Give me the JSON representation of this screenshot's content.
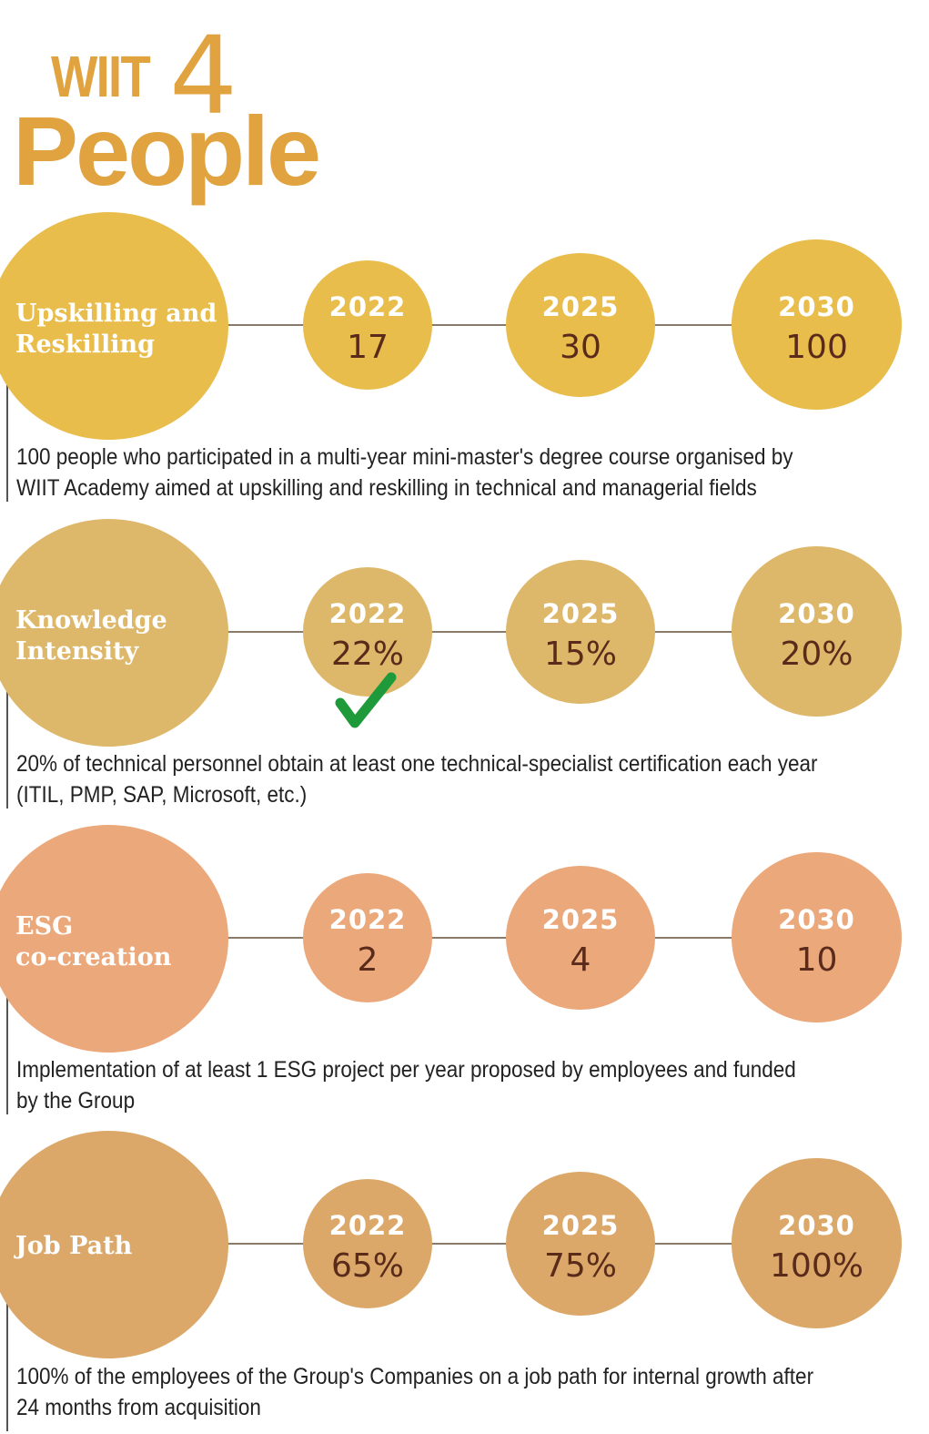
{
  "header": {
    "brand": "WIIT",
    "digit": "4",
    "word": "People"
  },
  "sections": [
    {
      "label": "Upskilling and\nReskilling",
      "color": "#e9bd4c",
      "milestones": [
        {
          "year": "2022",
          "value": "17"
        },
        {
          "year": "2025",
          "value": "30"
        },
        {
          "year": "2030",
          "value": "100"
        }
      ],
      "description": "100 people who participated in a multi-year mini-master's degree course organised by WIIT Academy aimed at upskilling and reskilling in technical and managerial fields"
    },
    {
      "label": "Knowledge\nIntensity",
      "color": "#deb86a",
      "milestones": [
        {
          "year": "2022",
          "value": "22%"
        },
        {
          "year": "2025",
          "value": "15%"
        },
        {
          "year": "2030",
          "value": "20%"
        }
      ],
      "achieved_icon": "checkmark-icon",
      "description": "20% of technical personnel obtain at least one technical-specialist certification each year (ITIL, PMP, SAP, Microsoft, etc.)"
    },
    {
      "label": "ESG\nco-creation",
      "color": "#eba87a",
      "milestones": [
        {
          "year": "2022",
          "value": "2"
        },
        {
          "year": "2025",
          "value": "4"
        },
        {
          "year": "2030",
          "value": "10"
        }
      ],
      "description": "Implementation of at least 1 ESG project per year proposed by employees and funded by the Group"
    },
    {
      "label": "Job Path",
      "color": "#dba869",
      "milestones": [
        {
          "year": "2022",
          "value": "65%"
        },
        {
          "year": "2025",
          "value": "75%"
        },
        {
          "year": "2030",
          "value": "100%"
        }
      ],
      "description": "100% of the employees of the Group's Companies on a job path for internal growth after 24 months from acquisition"
    }
  ],
  "colors": {
    "brand": "#e0a33f",
    "value_text": "#5a2a1a",
    "check": "#1e9a3a"
  }
}
